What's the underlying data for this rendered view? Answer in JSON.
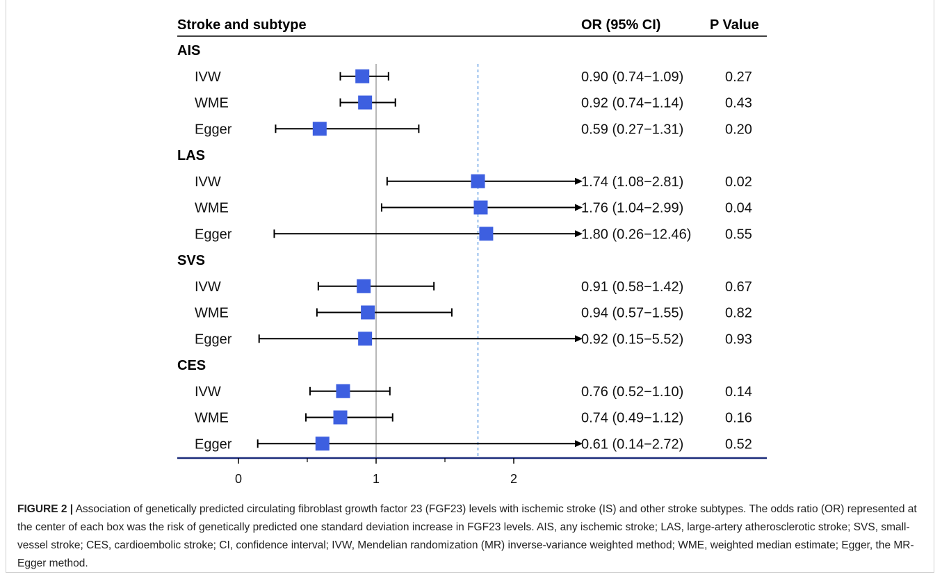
{
  "chart_data": {
    "type": "forest",
    "columns": {
      "label_header": "Stroke and subtype",
      "or_header": "OR (95% CI)",
      "p_header": "P Value"
    },
    "groups": [
      {
        "name": "AIS",
        "rows": [
          {
            "method": "IVW",
            "or": 0.9,
            "lo": 0.74,
            "hi": 1.09,
            "or_text": "0.90 (0.74−1.09)",
            "p": "0.27"
          },
          {
            "method": "WME",
            "or": 0.92,
            "lo": 0.74,
            "hi": 1.14,
            "or_text": "0.92 (0.74−1.14)",
            "p": "0.43"
          },
          {
            "method": "Egger",
            "or": 0.59,
            "lo": 0.27,
            "hi": 1.31,
            "or_text": "0.59 (0.27−1.31)",
            "p": "0.20"
          }
        ]
      },
      {
        "name": "LAS",
        "rows": [
          {
            "method": "IVW",
            "or": 1.74,
            "lo": 1.08,
            "hi": 2.81,
            "or_text": "1.74 (1.08−2.81)",
            "p": "0.02"
          },
          {
            "method": "WME",
            "or": 1.76,
            "lo": 1.04,
            "hi": 2.99,
            "or_text": "1.76 (1.04−2.99)",
            "p": "0.04"
          },
          {
            "method": "Egger",
            "or": 1.8,
            "lo": 0.26,
            "hi": 12.46,
            "or_text": "1.80 (0.26−12.46)",
            "p": "0.55"
          }
        ]
      },
      {
        "name": "SVS",
        "rows": [
          {
            "method": "IVW",
            "or": 0.91,
            "lo": 0.58,
            "hi": 1.42,
            "or_text": "0.91 (0.58−1.42)",
            "p": "0.67"
          },
          {
            "method": "WME",
            "or": 0.94,
            "lo": 0.57,
            "hi": 1.55,
            "or_text": "0.94 (0.57−1.55)",
            "p": "0.82"
          },
          {
            "method": "Egger",
            "or": 0.92,
            "lo": 0.15,
            "hi": 5.52,
            "or_text": "0.92 (0.15−5.52)",
            "p": "0.93"
          }
        ]
      },
      {
        "name": "CES",
        "rows": [
          {
            "method": "IVW",
            "or": 0.76,
            "lo": 0.52,
            "hi": 1.1,
            "or_text": "0.76 (0.52−1.10)",
            "p": "0.14"
          },
          {
            "method": "WME",
            "or": 0.74,
            "lo": 0.49,
            "hi": 1.12,
            "or_text": "0.74 (0.49−1.12)",
            "p": "0.16"
          },
          {
            "method": "Egger",
            "or": 0.61,
            "lo": 0.14,
            "hi": 2.72,
            "or_text": "0.61 (0.14−2.72)",
            "p": "0.52"
          }
        ]
      }
    ],
    "x_ticks": [
      0,
      1,
      2
    ],
    "x_tick_labels": [
      "0",
      "1",
      "2"
    ],
    "xlim": [
      0,
      2.5
    ],
    "reference_line": 1,
    "dashed_line": 1.74,
    "colors": {
      "box": "#3d5fe0",
      "reference": "#b8b8b8",
      "dashed": "#4a8fe0",
      "axis": "#1a2a7a"
    }
  },
  "caption": {
    "label": "FIGURE 2 |",
    "text": " Association of genetically predicted circulating fibroblast growth factor 23 (FGF23) levels with ischemic stroke (IS) and other stroke subtypes. The odds ratio (OR) represented at the center of each box was the risk of genetically predicted one standard deviation increase in FGF23 levels. AIS, any ischemic stroke; LAS, large-artery atherosclerotic stroke; SVS, small-vessel stroke; CES, cardioembolic stroke; CI, confidence interval; IVW, Mendelian randomization (MR) inverse-variance weighted method; WME, weighted median estimate; Egger, the MR-Egger method."
  }
}
